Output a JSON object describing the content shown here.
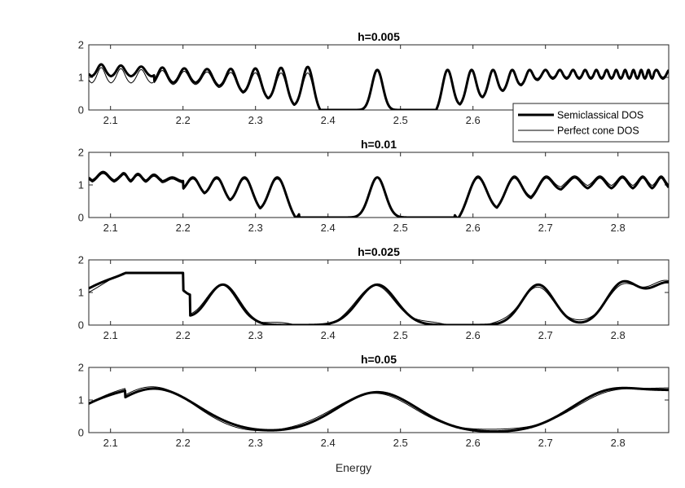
{
  "chart_data": {
    "type": "line",
    "xlabel": "Energy",
    "ylabel": "",
    "xlim": [
      2.07,
      2.87
    ],
    "ylim": [
      0,
      2
    ],
    "grid": false,
    "legend": {
      "placement": "top-right of first panel",
      "entries": [
        "Semiclassical DOS",
        "Perfect cone DOS"
      ]
    },
    "x_ticks": [
      "2.1",
      "2.2",
      "2.3",
      "2.4",
      "2.5",
      "2.6",
      "2.7",
      "2.8"
    ],
    "y_ticks": [
      "0",
      "1",
      "2"
    ],
    "series_styles": [
      {
        "name": "Semiclassical DOS",
        "color": "#000000",
        "weight": "thick"
      },
      {
        "name": "Perfect cone DOS",
        "color": "#000000",
        "weight": "thin"
      }
    ],
    "panels": [
      {
        "title": "h=0.005",
        "h": 0.005,
        "peak_energies": [
          2.372,
          2.468,
          2.565
        ],
        "gap": [
          2.39,
          2.55
        ],
        "peak_height": 1.23
      },
      {
        "title": "h=0.01",
        "h": 0.01,
        "peak_energies": [
          2.33,
          2.468,
          2.607
        ],
        "gap": [
          2.36,
          2.575
        ],
        "peak_height": 1.23
      },
      {
        "title": "h=0.025",
        "h": 0.025,
        "peak_energies": [
          2.255,
          2.468,
          2.69
        ],
        "gap": [
          2.33,
          2.605
        ],
        "peak_height": 1.24
      },
      {
        "title": "h=0.05",
        "h": 0.05,
        "peak_energies": [
          2.16,
          2.468,
          2.79
        ],
        "min_energies": [
          2.32,
          2.625
        ],
        "peak_height": 1.24
      }
    ]
  }
}
